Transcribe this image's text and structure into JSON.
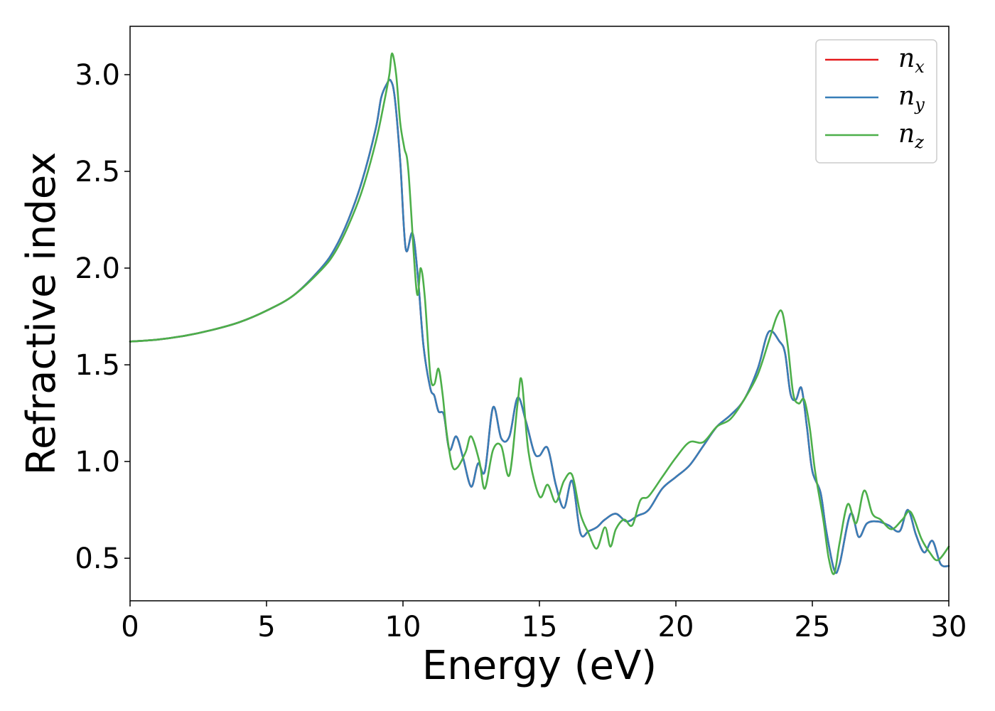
{
  "chart_data": {
    "type": "line",
    "xlabel": "Energy (eV)",
    "ylabel": "Refractive index",
    "xlim": [
      0,
      30
    ],
    "ylim": [
      0.28,
      3.25
    ],
    "xticks": [
      0,
      5,
      10,
      15,
      20,
      25,
      30
    ],
    "xtick_labels": [
      "0",
      "5",
      "10",
      "15",
      "20",
      "25",
      "30"
    ],
    "yticks": [
      0.5,
      1.0,
      1.5,
      2.0,
      2.5,
      3.0
    ],
    "ytick_labels": [
      "0.5",
      "1.0",
      "1.5",
      "2.0",
      "2.5",
      "3.0"
    ],
    "grid": false,
    "legend_position": "top-right",
    "series": [
      {
        "name": "n_x",
        "label_base": "n",
        "label_sub": "x",
        "color": "#e41a1c",
        "x": [
          0,
          1,
          2,
          3,
          4,
          5,
          6,
          7,
          7.5,
          8,
          8.5,
          9,
          9.2,
          9.4,
          9.55,
          9.7,
          9.9,
          10.1,
          10.35,
          10.55,
          10.75,
          11.0,
          11.15,
          11.3,
          11.5,
          11.7,
          11.95,
          12.2,
          12.5,
          12.75,
          13.0,
          13.3,
          13.6,
          13.9,
          14.2,
          14.5,
          14.8,
          15.0,
          15.3,
          15.6,
          15.9,
          16.2,
          16.5,
          16.8,
          17.1,
          17.4,
          17.8,
          18.2,
          18.6,
          19.0,
          19.5,
          20.0,
          20.5,
          21.0,
          21.5,
          22.0,
          22.5,
          23.0,
          23.4,
          23.8,
          24.0,
          24.2,
          24.4,
          24.6,
          24.8,
          25.0,
          25.3,
          25.5,
          25.8,
          26.0,
          26.4,
          26.7,
          27.0,
          27.4,
          27.8,
          28.2,
          28.5,
          28.8,
          29.1,
          29.4,
          29.7,
          30.0
        ],
        "values": [
          1.62,
          1.63,
          1.65,
          1.68,
          1.72,
          1.78,
          1.86,
          2.0,
          2.1,
          2.25,
          2.45,
          2.72,
          2.88,
          2.95,
          2.97,
          2.88,
          2.55,
          2.1,
          2.18,
          1.95,
          1.6,
          1.38,
          1.34,
          1.26,
          1.24,
          1.06,
          1.13,
          1.02,
          0.87,
          0.99,
          0.95,
          1.28,
          1.12,
          1.13,
          1.33,
          1.21,
          1.05,
          1.03,
          1.07,
          0.88,
          0.76,
          0.9,
          0.63,
          0.64,
          0.66,
          0.7,
          0.73,
          0.69,
          0.72,
          0.75,
          0.86,
          0.92,
          0.98,
          1.08,
          1.18,
          1.24,
          1.32,
          1.48,
          1.67,
          1.62,
          1.56,
          1.35,
          1.32,
          1.38,
          1.18,
          0.95,
          0.84,
          0.65,
          0.44,
          0.47,
          0.73,
          0.61,
          0.68,
          0.69,
          0.67,
          0.64,
          0.75,
          0.62,
          0.53,
          0.59,
          0.47,
          0.46
        ]
      },
      {
        "name": "n_y",
        "label_base": "n",
        "label_sub": "y",
        "color": "#377eb8",
        "x": [
          0,
          1,
          2,
          3,
          4,
          5,
          6,
          7,
          7.5,
          8,
          8.5,
          9,
          9.2,
          9.4,
          9.55,
          9.7,
          9.9,
          10.1,
          10.35,
          10.55,
          10.75,
          11.0,
          11.15,
          11.3,
          11.5,
          11.7,
          11.95,
          12.2,
          12.5,
          12.75,
          13.0,
          13.3,
          13.6,
          13.9,
          14.2,
          14.5,
          14.8,
          15.0,
          15.3,
          15.6,
          15.9,
          16.2,
          16.5,
          16.8,
          17.1,
          17.4,
          17.8,
          18.2,
          18.6,
          19.0,
          19.5,
          20.0,
          20.5,
          21.0,
          21.5,
          22.0,
          22.5,
          23.0,
          23.4,
          23.8,
          24.0,
          24.2,
          24.4,
          24.6,
          24.8,
          25.0,
          25.3,
          25.5,
          25.8,
          26.0,
          26.4,
          26.7,
          27.0,
          27.4,
          27.8,
          28.2,
          28.5,
          28.8,
          29.1,
          29.4,
          29.7,
          30.0
        ],
        "values": [
          1.62,
          1.63,
          1.65,
          1.68,
          1.72,
          1.78,
          1.86,
          2.0,
          2.1,
          2.25,
          2.45,
          2.72,
          2.88,
          2.95,
          2.97,
          2.88,
          2.55,
          2.1,
          2.18,
          1.95,
          1.6,
          1.38,
          1.34,
          1.26,
          1.24,
          1.06,
          1.13,
          1.02,
          0.87,
          0.99,
          0.95,
          1.28,
          1.12,
          1.13,
          1.33,
          1.21,
          1.05,
          1.03,
          1.07,
          0.88,
          0.76,
          0.9,
          0.63,
          0.64,
          0.66,
          0.7,
          0.73,
          0.69,
          0.72,
          0.75,
          0.86,
          0.92,
          0.98,
          1.08,
          1.18,
          1.24,
          1.32,
          1.48,
          1.67,
          1.62,
          1.56,
          1.35,
          1.32,
          1.38,
          1.18,
          0.95,
          0.84,
          0.65,
          0.44,
          0.47,
          0.73,
          0.61,
          0.68,
          0.69,
          0.67,
          0.64,
          0.75,
          0.62,
          0.53,
          0.59,
          0.47,
          0.46
        ]
      },
      {
        "name": "n_z",
        "label_base": "n",
        "label_sub": "z",
        "color": "#4daf4a",
        "x": [
          0,
          1,
          2,
          3,
          4,
          5,
          6,
          7,
          7.5,
          8,
          8.5,
          9,
          9.3,
          9.5,
          9.6,
          9.75,
          9.9,
          10.05,
          10.2,
          10.5,
          10.65,
          10.8,
          11.0,
          11.15,
          11.3,
          11.45,
          11.6,
          11.8,
          12.0,
          12.3,
          12.5,
          12.8,
          13.0,
          13.3,
          13.6,
          13.9,
          14.2,
          14.35,
          14.6,
          15.0,
          15.3,
          15.6,
          15.9,
          16.2,
          16.5,
          16.8,
          17.1,
          17.4,
          17.6,
          17.8,
          18.1,
          18.4,
          18.7,
          19.0,
          19.5,
          20.0,
          20.5,
          21.0,
          21.5,
          22.0,
          22.5,
          23.0,
          23.4,
          23.7,
          23.9,
          24.1,
          24.3,
          24.5,
          24.7,
          24.9,
          25.1,
          25.4,
          25.6,
          25.8,
          26.0,
          26.3,
          26.6,
          26.9,
          27.2,
          27.5,
          27.9,
          28.3,
          28.6,
          29.0,
          29.3,
          29.6,
          30.0
        ],
        "values": [
          1.62,
          1.63,
          1.65,
          1.68,
          1.72,
          1.78,
          1.86,
          1.99,
          2.08,
          2.22,
          2.4,
          2.65,
          2.85,
          3.0,
          3.11,
          3.0,
          2.75,
          2.62,
          2.5,
          1.88,
          2.0,
          1.85,
          1.45,
          1.4,
          1.48,
          1.35,
          1.15,
          0.98,
          0.97,
          1.05,
          1.13,
          1.0,
          0.86,
          1.06,
          1.08,
          0.93,
          1.3,
          1.42,
          1.05,
          0.82,
          0.88,
          0.79,
          0.9,
          0.93,
          0.73,
          0.63,
          0.55,
          0.66,
          0.56,
          0.65,
          0.7,
          0.67,
          0.8,
          0.82,
          0.92,
          1.02,
          1.1,
          1.1,
          1.18,
          1.22,
          1.32,
          1.45,
          1.62,
          1.75,
          1.77,
          1.6,
          1.35,
          1.3,
          1.32,
          1.18,
          0.95,
          0.7,
          0.5,
          0.42,
          0.58,
          0.78,
          0.68,
          0.85,
          0.73,
          0.7,
          0.65,
          0.7,
          0.74,
          0.6,
          0.53,
          0.49,
          0.56
        ]
      }
    ]
  }
}
